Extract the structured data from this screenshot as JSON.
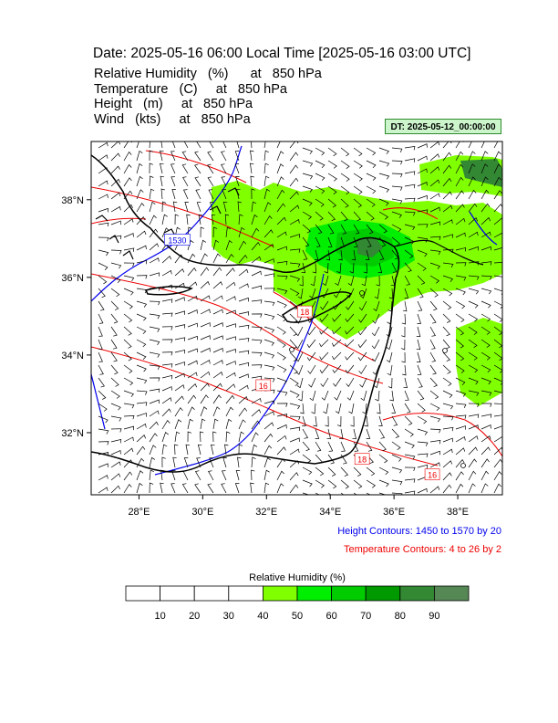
{
  "header": {
    "title": "Date: 2025-05-16  06:00 Local Time [2025-05-16  03:00 UTC]",
    "params": [
      "Relative Humidity   (%)      at   850 hPa",
      "Temperature   (C)     at   850 hPa",
      "Height   (m)     at   850 hPa",
      "Wind   (kts)     at   850 hPa"
    ],
    "dt_badge": "DT: 2025-05-12_00:00:00"
  },
  "map": {
    "lon_range": [
      26.5,
      39.4
    ],
    "lat_range": [
      30.4,
      39.5
    ],
    "lon_ticks": [
      {
        "value": 28,
        "label": "28°E"
      },
      {
        "value": 30,
        "label": "30°E"
      },
      {
        "value": 32,
        "label": "32°E"
      },
      {
        "value": 34,
        "label": "34°E"
      },
      {
        "value": 36,
        "label": "36°E"
      },
      {
        "value": 38,
        "label": "38°E"
      }
    ],
    "lat_ticks": [
      {
        "value": 32,
        "label": "32°N"
      },
      {
        "value": 34,
        "label": "34°N"
      },
      {
        "value": 36,
        "label": "36°N"
      },
      {
        "value": 38,
        "label": "38°N"
      }
    ],
    "contour_labels": [
      {
        "text": "1530",
        "lon": 29.2,
        "lat": 36.95,
        "color": "#0000ee"
      },
      {
        "text": "16",
        "lon": 31.9,
        "lat": 33.2,
        "color": "#ee0000"
      },
      {
        "text": "18",
        "lon": 35.0,
        "lat": 31.3,
        "color": "#ee0000"
      },
      {
        "text": "16",
        "lon": 37.2,
        "lat": 30.9,
        "color": "#ee0000"
      },
      {
        "text": "18",
        "lon": 33.2,
        "lat": 35.1,
        "color": "#ee0000"
      }
    ],
    "colors": {
      "coast": "#000000",
      "height_contour": "#0000ee",
      "temp_contour": "#ee0000",
      "wind_barb": "#000000"
    }
  },
  "notes": {
    "height_contours": "Height Contours: 1450 to 1570 by 20",
    "temp_contours": "Temperature Contours: 4 to 26 by 2"
  },
  "colorbar": {
    "title": "Relative Humidity  (%)",
    "labels": [
      "10",
      "20",
      "30",
      "40",
      "50",
      "60",
      "70",
      "80",
      "90"
    ],
    "colors": [
      "#ffffff",
      "#ffffff",
      "#ffffff",
      "#ffffff",
      "#80ff00",
      "#00ee00",
      "#00cc00",
      "#009900",
      "#338833",
      "#558855"
    ]
  }
}
